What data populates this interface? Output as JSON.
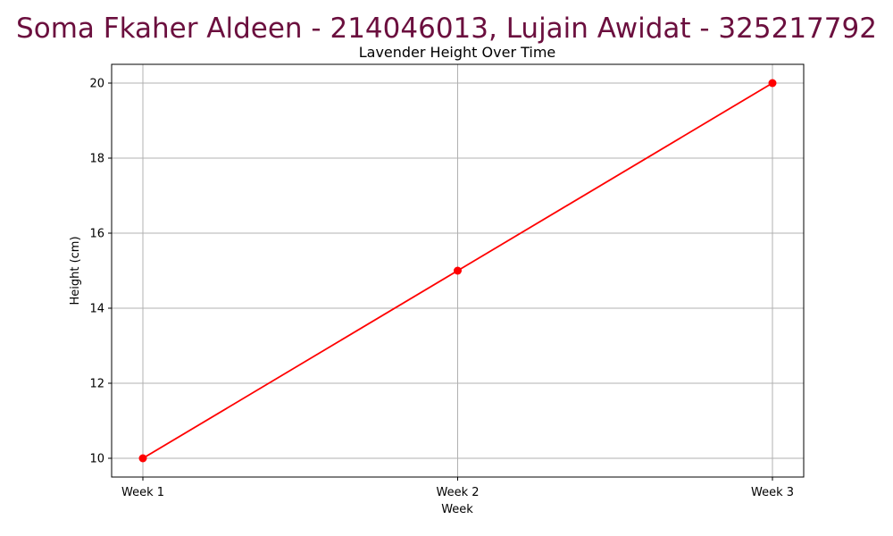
{
  "page": {
    "header": "Soma Fkaher Aldeen - 214046013, Lujain Awidat - 325217792"
  },
  "colors": {
    "header_text": "#6b0f3e",
    "series_line": "#ff0000",
    "grid": "#b0b0b0"
  },
  "chart_data": {
    "type": "line",
    "title": "Lavender Height Over Time",
    "xlabel": "Week",
    "ylabel": "Height (cm)",
    "categories": [
      "Week 1",
      "Week 2",
      "Week 3"
    ],
    "values": [
      10,
      15,
      20
    ],
    "y_ticks": [
      10,
      12,
      14,
      16,
      18,
      20
    ],
    "ylim": [
      9.5,
      20.5
    ],
    "grid": true,
    "markers": true
  }
}
